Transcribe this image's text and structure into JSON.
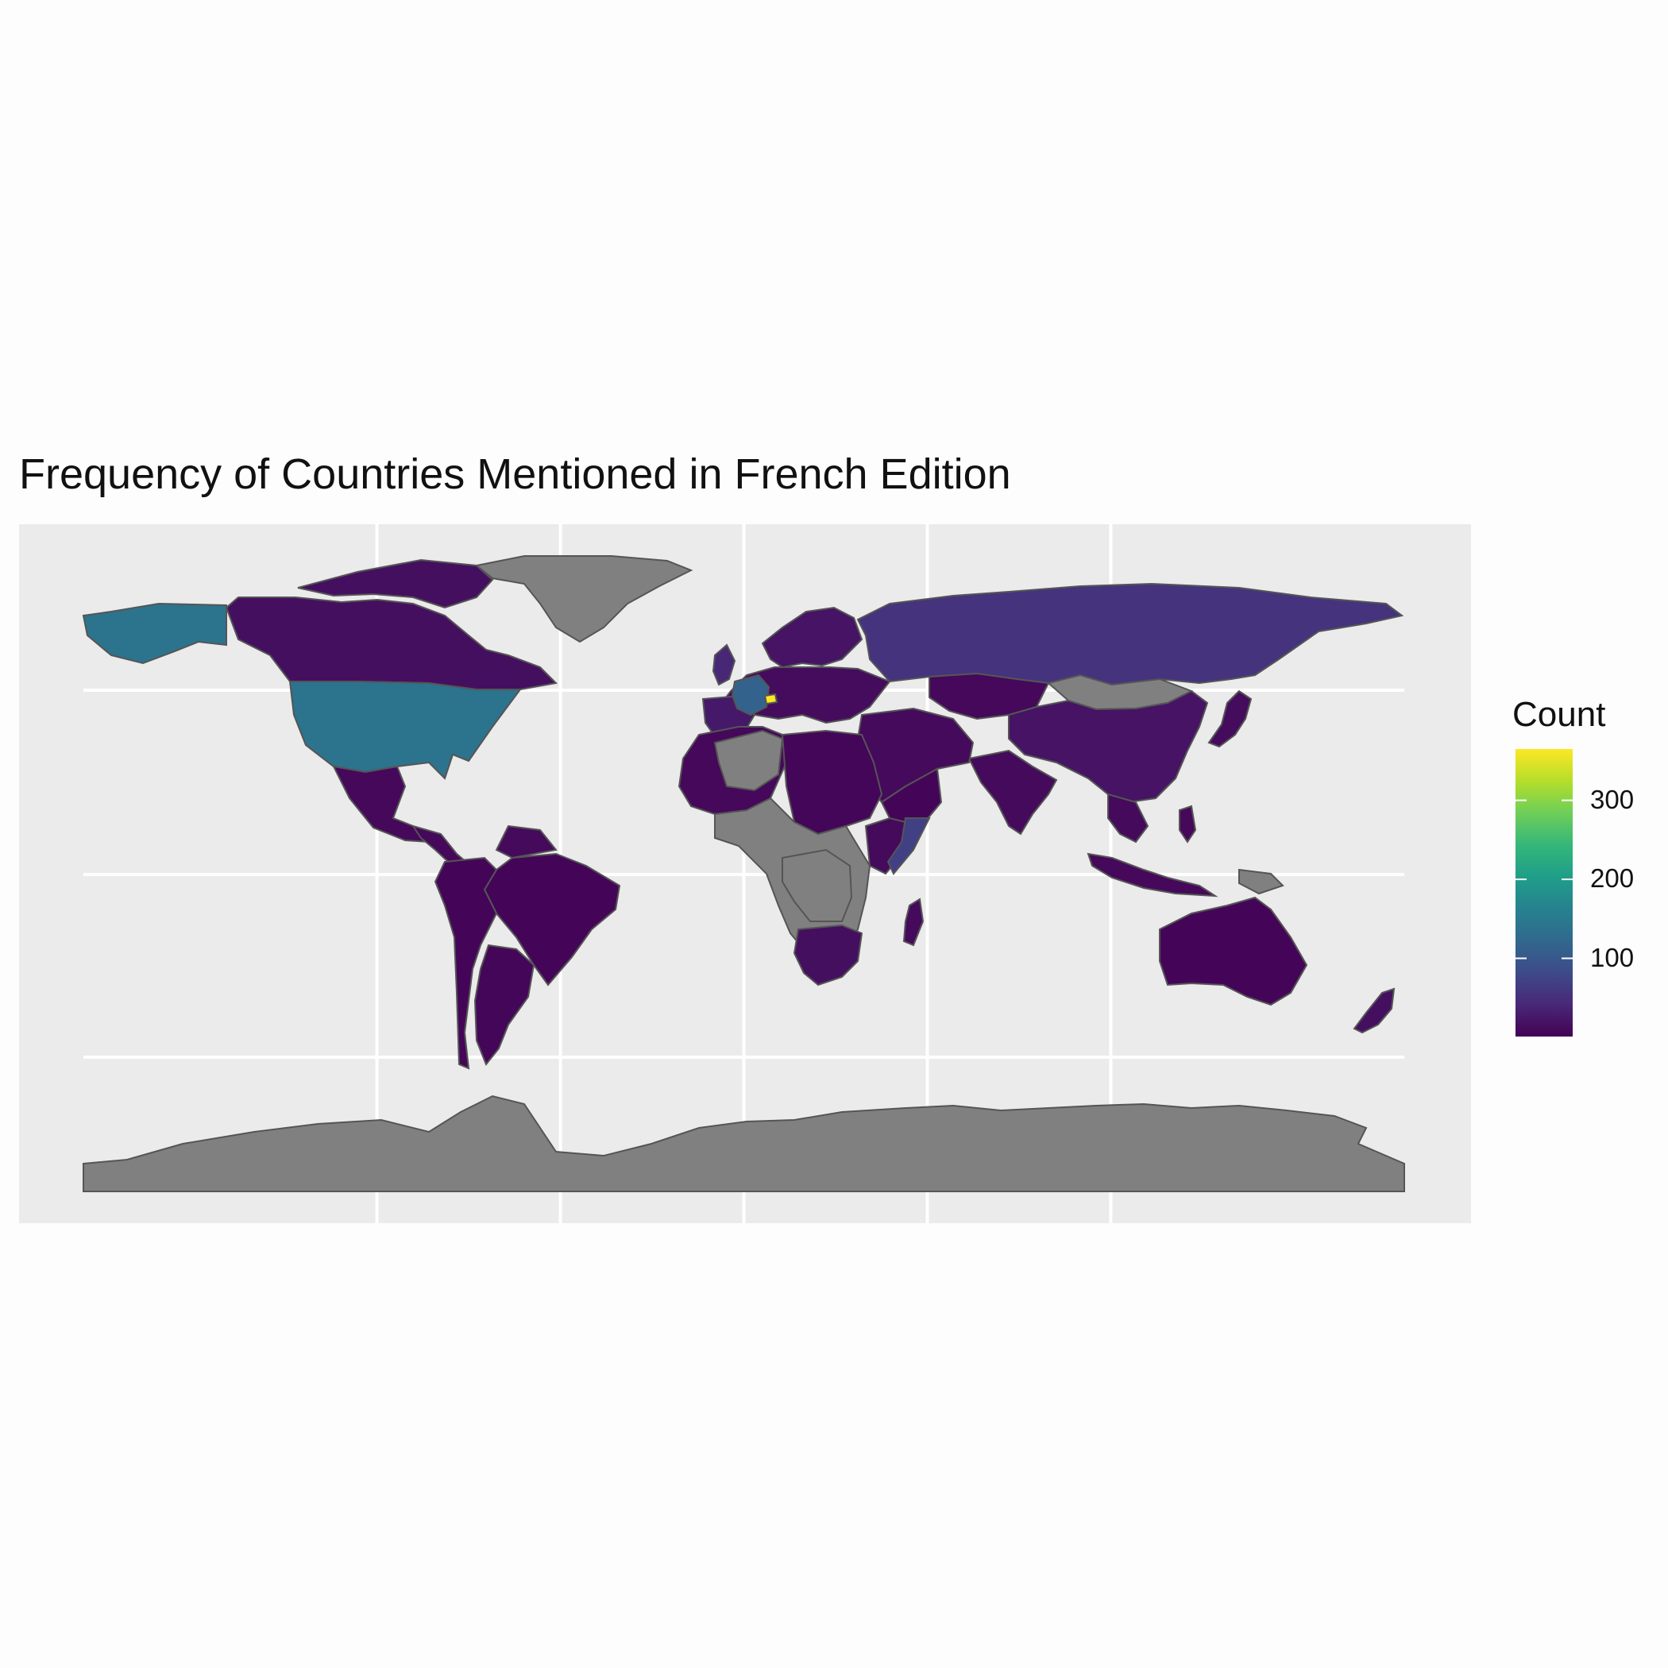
{
  "title": "Frequency of Countries Mentioned in French Edition",
  "legend": {
    "title": "Count",
    "ticks": [
      {
        "value": 100,
        "label": "100"
      },
      {
        "value": 200,
        "label": "200"
      },
      {
        "value": 300,
        "label": "300"
      }
    ],
    "min": 1,
    "max": 365,
    "palette": "viridis",
    "placement": "right"
  },
  "colors": {
    "page_background": "#fdfdfd",
    "panel_background": "#ebebeb",
    "gridline": "#ffffff",
    "no_data": "#808080",
    "border": "#555555",
    "viridis": [
      "#440154",
      "#482878",
      "#3e4a89",
      "#31688e",
      "#26828e",
      "#1f9e89",
      "#35b779",
      "#6ece58",
      "#b5de2b",
      "#fde725"
    ]
  },
  "chart_data": {
    "type": "choropleth",
    "title": "Frequency of Countries Mentioned in French Edition",
    "legend_title": "Count",
    "grid": true,
    "regions": [
      {
        "name": "Switzerland",
        "value": 365
      },
      {
        "name": "France",
        "value": 115
      },
      {
        "name": "United States",
        "value": 140
      },
      {
        "name": "Russia",
        "value": 55
      },
      {
        "name": "Somalia",
        "value": 70
      },
      {
        "name": "Canada",
        "value": 15
      },
      {
        "name": "China",
        "value": 20
      },
      {
        "name": "Brazil",
        "value": 5
      },
      {
        "name": "Australia",
        "value": 5
      },
      {
        "name": "India",
        "value": 10
      },
      {
        "name": "Mexico",
        "value": 8
      },
      {
        "name": "Argentina",
        "value": 6
      },
      {
        "name": "Japan",
        "value": 12
      },
      {
        "name": "Indonesia",
        "value": 8
      },
      {
        "name": "South Africa",
        "value": 15
      },
      {
        "name": "Madagascar",
        "value": 10
      },
      {
        "name": "New Zealand",
        "value": 15
      },
      {
        "name": "Greenland",
        "value": null
      },
      {
        "name": "Mongolia",
        "value": null
      },
      {
        "name": "Antarctica",
        "value": null
      },
      {
        "name": "Algeria",
        "value": null
      },
      {
        "name": "Democratic Republic of the Congo",
        "value": null
      },
      {
        "name": "Papua New Guinea",
        "value": null
      }
    ]
  }
}
